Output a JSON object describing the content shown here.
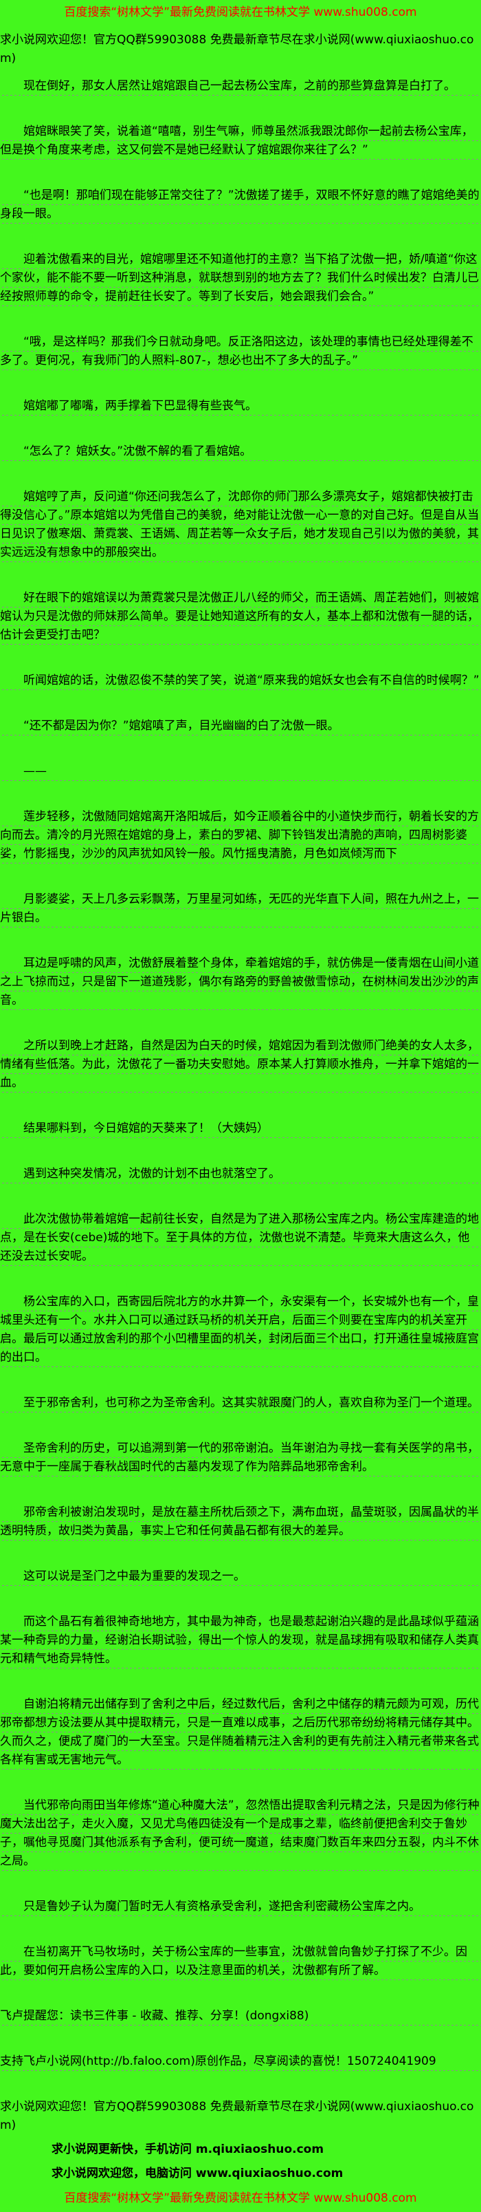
{
  "header": {
    "baidu_line": "百度搜索“树林文学”最新免费阅读就在书林文学 www.shu008.com",
    "site_line": "求小说网欢迎您！官方QQ群59903088 免费最新章节尽在求小说网(www.qiuxiaoshuo.com)"
  },
  "paragraphs": [
    {
      "indent": true,
      "text": "现在倒好，那女人居然让婠婠跟自己一起去杨公宝库，之前的那些算盘算是白打了。"
    },
    {
      "indent": true,
      "text": "婠婠眯眼笑了笑，说着道“嘻嘻，别生气嘛，师尊虽然派我跟沈郎你一起前去杨公宝库，但是换个角度来考虑，这又何尝不是她已经默认了婠婠跟你来往了么？”"
    },
    {
      "indent": true,
      "text": "“也是啊！那咱们现在能够正常交往了？”沈傲搓了搓手，双眼不怀好意的瞧了婠婠绝美的身段一眼。"
    },
    {
      "indent": true,
      "text": "迎着沈傲看来的目光，婠婠哪里还不知道他打的主意？当下掐了沈傲一把，娇/嗔道“你这个家伙，能不能不要一听到这种消息，就联想到别的地方去了？我们什么时候出发？白清儿已经按照师尊的命令，提前赶往长安了。等到了长安后，她会跟我们会合。”"
    },
    {
      "indent": true,
      "text": "“哦，是这样吗？那我们今日就动身吧。反正洛阳这边，该处理的事情也已经处理得差不多了。更何况，有我师门的人照料-807-，想必也出不了多大的乱子。”"
    },
    {
      "indent": true,
      "text": "婠婠嘟了嘟嘴，两手撑着下巴显得有些丧气。"
    },
    {
      "indent": true,
      "text": "“怎么了？婠妖女。”沈傲不解的看了看婠婠。"
    },
    {
      "indent": true,
      "text": "婠婠哼了声，反问道“你还问我怎么了，沈郎你的师门那么多漂亮女子，婠婠都快被打击得没信心了。”原本婠婠以为凭借自己的美貌，绝对能让沈傲一心一意的对自己好。但是自从当日见识了傲寒烟、萧霓裳、王语嫣、周芷若等一众女子后，她才发现自己引以为傲的美貌，其实远远没有想象中的那般突出。"
    },
    {
      "indent": true,
      "text": "好在眼下的婠婠误以为萧霓裳只是沈傲正儿八经的师父，而王语嫣、周芷若她们，则被婠婠认为只是沈傲的师妹那么简单。要是让她知道这所有的女人，基本上都和沈傲有一腿的话，估计会更受打击吧？"
    },
    {
      "indent": true,
      "text": "听闻婠婠的话，沈傲忍俊不禁的笑了笑，说道“原来我的婠妖女也会有不自信的时候啊？”"
    },
    {
      "indent": true,
      "text": "“还不都是因为你？”婠婠嗔了声，目光幽幽的白了沈傲一眼。"
    },
    {
      "indent": true,
      "text": "——"
    },
    {
      "indent": true,
      "text": "莲步轻移，沈傲随同婠婠离开洛阳城后，如今正顺着谷中的小道快步而行，朝着长安的方向而去。清冷的月光照在婠婠的身上，素白的罗裙、脚下铃铛发出清脆的声响，四周树影婆娑，竹影摇曳，沙沙的风声犹如风铃一般。风竹摇曳清脆，月色如岚倾泻而下"
    },
    {
      "indent": true,
      "text": "月影婆娑，天上几多云彩飘荡，万里星河如练，无匹的光华直下人间，照在九州之上，一片银白。"
    },
    {
      "indent": true,
      "text": "耳边是呼啸的风声，沈傲舒展着整个身体，牵着婠婠的手，就仿佛是一偻青烟在山间小道之上飞掠而过，只是留下一道道残影，偶尔有路旁的野兽被傲雪惊动，在树林间发出沙沙的声音。"
    },
    {
      "indent": true,
      "text": "之所以到晚上才赶路，自然是因为白天的时候，婠婠因为看到沈傲师门绝美的女人太多，情绪有些低落。为此，沈傲花了一番功夫安慰她。原本某人打算顺水推舟，一并拿下婠婠的一血。"
    },
    {
      "indent": true,
      "text": "结果哪料到，今日婠婠的天葵来了！（大姨妈）"
    },
    {
      "indent": true,
      "text": "遇到这种突发情况，沈傲的计划不由也就落空了。"
    },
    {
      "indent": true,
      "text": "此次沈傲协带着婠婠一起前往长安，自然是为了进入那杨公宝库之内。杨公宝库建造的地点，是在长安(cebe)城的地下。至于具体的方位，沈傲也说不清楚。毕竟来大唐这么久，他还没去过长安呢。"
    },
    {
      "indent": true,
      "text": "杨公宝库的入口，西寄园后院北方的水井算一个，永安渠有一个，长安城外也有一个，皇城里头还有一个。水井入口可以通过跃马桥的机关开启，后面三个则要在宝库内的机关室开启。最后可以通过放舍利的那个小凹槽里面的机关，封闭后面三个出口，打开通往皇城掖庭宫的出口。"
    },
    {
      "indent": true,
      "text": "至于邪帝舍利，也可称之为圣帝舍利。这其实就跟魔门的人，喜欢自称为圣门一个道理。"
    },
    {
      "indent": true,
      "text": "圣帝舍利的历史，可以追溯到第一代的邪帝谢泊。当年谢泊为寻找一套有关医学的帛书，无意中于一座属于春秋战国时代的古墓内发现了作为陪葬品地邪帝舍利。"
    },
    {
      "indent": true,
      "text": "邪帝舍利被谢泊发现时，是放在墓主所枕后颈之下，满布血斑，晶莹斑驳，因属晶状的半透明特质，故归类为黄晶，事实上它和任何黄晶石都有很大的差异。"
    },
    {
      "indent": true,
      "text": "这可以说是圣门之中最为重要的发现之一。"
    },
    {
      "indent": true,
      "text": "而这个晶石有着很神奇地地方，其中最为神奇，也是最惹起谢泊兴趣的是此晶球似乎蕴涵某一种奇异的力量，经谢泊长期试验，得出一个惊人的发现，就是晶球拥有吸取和储存人类真元和精气地奇异特性。"
    },
    {
      "indent": true,
      "text": "自谢泊将精元出储存到了舍利之中后，经过数代后，舍利之中储存的精元颇为可观，历代邪帝都想方设法要从其中提取精元，只是一直难以成事，之后历代邪帝纷纷将精元储存其中。久而久之，便成了魔门的一大至宝。只是伴随着精元注入舍利的更有先前注入精元者带来各式各样有害或无害地元气。"
    },
    {
      "indent": true,
      "text": "当代邪帝向雨田当年修炼“道心种魔大法”，忽然悟出提取舍利元精之法，只是因为修行种魔大法出岔子，走火入魔，又见尤鸟倦四徒没有一个是成事之辈，临终前便把舍利交于鲁妙子，嘱他寻觅魔门其他派系有予舍利，便可统一魔道，结束魔门数百年来四分五裂，内斗不休之局。"
    },
    {
      "indent": true,
      "text": "只是鲁妙子认为魔门暂时无人有资格承受舍利，遂把舍利密藏杨公宝库之内。"
    },
    {
      "indent": true,
      "text": "在当初离开飞马牧场时，关于杨公宝库的一些事宜，沈傲就曾向鲁妙子打探了不少。因此，要如何开启杨公宝库的入口，以及注意里面的机关，沈傲都有所了解。"
    },
    {
      "indent": false,
      "text": "飞卢提醒您：读书三件事 - 收藏、推荐、分享！(dongxi88)"
    },
    {
      "indent": false,
      "text": "支持飞卢小说网(http://b.faloo.com)原创作品，尽享阅读的喜悦！150724041909"
    }
  ],
  "footer": {
    "site_line": "求小说网欢迎您！官方QQ群59903088 免费最新章节尽在求小说网(www.qiuxiaoshuo.com)",
    "mobile_line": "求小说网更新快，手机访问 m.qiuxiaoshuo.com",
    "pc_line": "求小说网欢迎您，电脑访问 www.qiuxiaoshuo.com",
    "baidu_line": "百度搜索“树林文学”最新免费阅读就在书林文学 www.shu008.com"
  },
  "colors": {
    "background": "#44f71d",
    "body_text": "#000000",
    "promo_red": "#ff0000",
    "dashed_underline": "#8f8a8f"
  }
}
